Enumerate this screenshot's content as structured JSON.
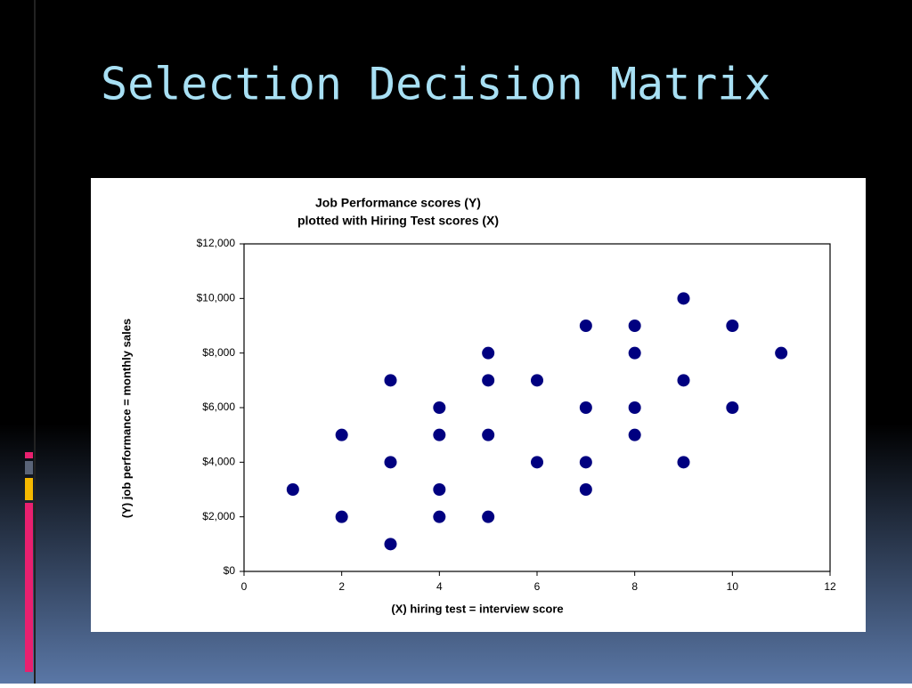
{
  "slide": {
    "title": "Selection Decision Matrix"
  },
  "chart_data": {
    "type": "scatter",
    "title": [
      "Job Performance scores (Y)",
      "plotted with Hiring Test scores (X)"
    ],
    "x_label": "(X) hiring test = interview score",
    "y_label": "(Y) job performance = monthly sales",
    "x": [
      1,
      2,
      2,
      3,
      3,
      3,
      4,
      4,
      4,
      4,
      5,
      5,
      5,
      5,
      6,
      6,
      7,
      7,
      7,
      7,
      8,
      8,
      8,
      8,
      9,
      9,
      9,
      10,
      10,
      11
    ],
    "values": [
      3000,
      5000,
      2000,
      7000,
      4000,
      1000,
      6000,
      5000,
      3000,
      2000,
      8000,
      7000,
      5000,
      2000,
      7000,
      4000,
      9000,
      6000,
      4000,
      3000,
      9000,
      8000,
      6000,
      5000,
      10000,
      7000,
      4000,
      9000,
      6000,
      8000
    ],
    "color": "#000080",
    "xlim": [
      0,
      12
    ],
    "xticks": [
      0,
      2,
      4,
      6,
      8,
      10,
      12
    ],
    "ylim": [
      0,
      12000
    ],
    "yticks": [
      {
        "value": 0,
        "label": "$0"
      },
      {
        "value": 2000,
        "label": "$2,000"
      },
      {
        "value": 4000,
        "label": "$4,000"
      },
      {
        "value": 6000,
        "label": "$6,000"
      },
      {
        "value": 8000,
        "label": "$8,000"
      },
      {
        "value": 10000,
        "label": "$10,000"
      },
      {
        "value": 12000,
        "label": "$12,000"
      }
    ],
    "grid": false
  }
}
